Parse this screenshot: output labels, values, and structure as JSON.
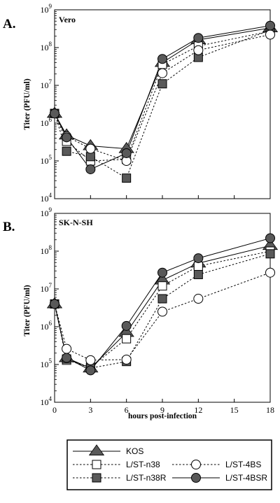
{
  "chart_data": [
    {
      "type": "line",
      "panel_letter": "A.",
      "panel_title": "Vero",
      "xlabel": "",
      "ylabel": "Titer (PFU/ml)",
      "yscale": "log",
      "ylim": [
        10000,
        1000000000
      ],
      "xlim": [
        0,
        18
      ],
      "x": [
        0,
        1,
        3,
        6,
        9,
        12,
        18
      ],
      "series": [
        {
          "name": "KOS",
          "marker": "triangle",
          "dash": "solid",
          "values": [
            1800000,
            480000,
            250000,
            210000,
            40000000,
            160000000,
            330000000
          ]
        },
        {
          "name": "L/ST-n38",
          "marker": "open-square",
          "dash": "dotted",
          "values": [
            1800000,
            330000,
            100000,
            110000,
            36000000,
            110000000,
            270000000
          ]
        },
        {
          "name": "L/ST-n38R",
          "marker": "filled-square",
          "dash": "dotted",
          "values": [
            1800000,
            180000,
            130000,
            35000,
            11000000,
            55000000,
            290000000
          ]
        },
        {
          "name": "L/ST-4BS",
          "marker": "open-circle",
          "dash": "dotted",
          "values": [
            1800000,
            450000,
            210000,
            100000,
            21000000,
            85000000,
            220000000
          ]
        },
        {
          "name": "L/ST-4BSR",
          "marker": "filled-circle",
          "dash": "solid",
          "values": [
            1800000,
            420000,
            60000,
            160000,
            50000000,
            180000000,
            380000000
          ]
        }
      ]
    },
    {
      "type": "line",
      "panel_letter": "B.",
      "panel_title": "SK-N-SH",
      "xlabel": "hours post-infection",
      "ylabel": "Titer (PFU/ml)",
      "yscale": "log",
      "ylim": [
        10000,
        1000000000
      ],
      "xlim": [
        0,
        18
      ],
      "x": [
        0,
        1,
        3,
        6,
        9,
        12,
        18
      ],
      "xticks": [
        "0",
        "3",
        "6",
        "9",
        "12",
        "15",
        "18"
      ],
      "series": [
        {
          "name": "KOS",
          "marker": "triangle",
          "dash": "solid",
          "values": [
            4000000,
            150000,
            80000,
            700000,
            17000000,
            48000000,
            140000000
          ]
        },
        {
          "name": "L/ST-n38",
          "marker": "open-square",
          "dash": "dotted",
          "values": [
            4000000,
            130000,
            85000,
            480000,
            12000000,
            40000000,
            100000000
          ]
        },
        {
          "name": "L/ST-n38R",
          "marker": "filled-square",
          "dash": "dotted",
          "values": [
            4000000,
            140000,
            80000,
            120000,
            5500000,
            24000000,
            85000000
          ]
        },
        {
          "name": "L/ST-4BS",
          "marker": "open-circle",
          "dash": "dotted",
          "values": [
            4000000,
            260000,
            130000,
            135000,
            2500000,
            5500000,
            27000000
          ]
        },
        {
          "name": "L/ST-4BSR",
          "marker": "filled-circle",
          "dash": "solid",
          "values": [
            4000000,
            150000,
            70000,
            1050000,
            27000000,
            65000000,
            220000000
          ]
        }
      ]
    }
  ],
  "legend": {
    "items": [
      {
        "label": "KOS",
        "marker": "triangle",
        "dash": "solid"
      },
      {
        "label": "L/ST-n38",
        "marker": "open-square",
        "dash": "dotted"
      },
      {
        "label": "L/ST-n38R",
        "marker": "filled-square",
        "dash": "dotted"
      },
      {
        "label": "L/ST-4BS",
        "marker": "open-circle",
        "dash": "dotted"
      },
      {
        "label": "L/ST-4BSR",
        "marker": "filled-circle",
        "dash": "solid"
      }
    ]
  },
  "colors": {
    "ink": "#000000",
    "marker_fill_dark": "#595959",
    "marker_fill_open": "#ffffff"
  }
}
